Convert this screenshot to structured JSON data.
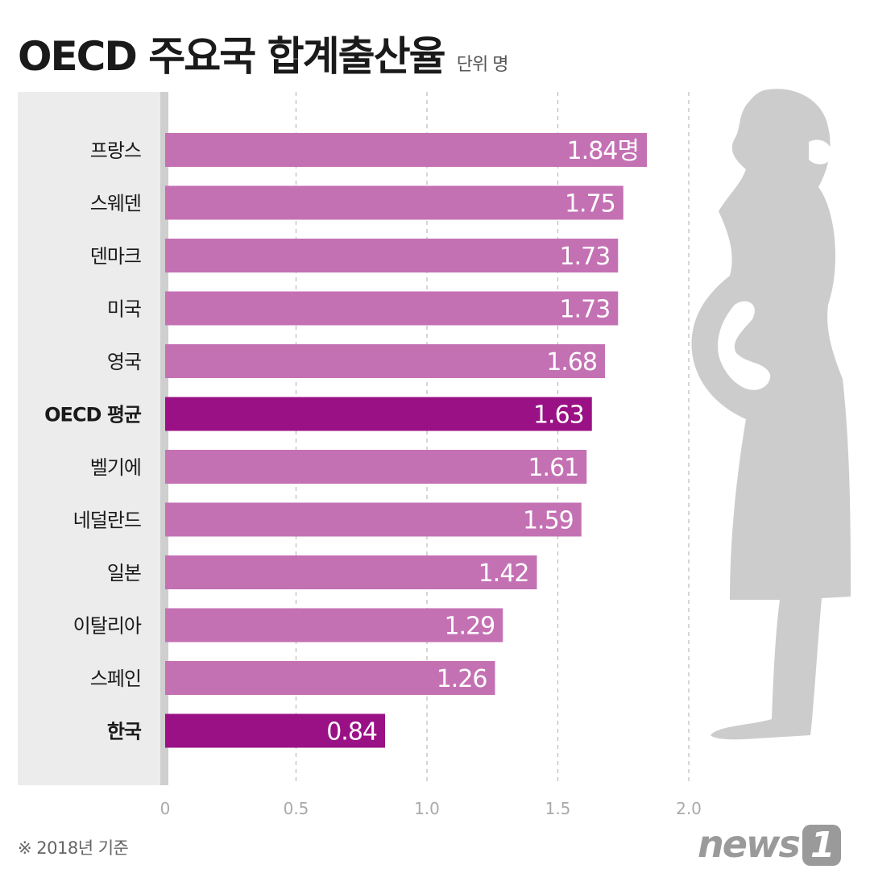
{
  "title": "OECD 주요국 합계출산율",
  "unit": "단위 명",
  "footnote": "※ 2018년 기준",
  "logo": {
    "text": "news",
    "mark": "1"
  },
  "colors": {
    "bar": "#c471b4",
    "highlight": "#9a1185",
    "panel": "#ececec",
    "divider": "#cfcfcf",
    "grid": "#bbbbbb",
    "silhouette": "#cccccc"
  },
  "chart_data": {
    "type": "bar",
    "orientation": "horizontal",
    "categories": [
      "프랑스",
      "스웨덴",
      "덴마크",
      "미국",
      "영국",
      "OECD 평균",
      "벨기에",
      "네덜란드",
      "일본",
      "이탈리아",
      "스페인",
      "한국"
    ],
    "values": [
      1.84,
      1.75,
      1.73,
      1.73,
      1.68,
      1.63,
      1.61,
      1.59,
      1.42,
      1.29,
      1.26,
      0.84
    ],
    "value_labels": [
      "1.84명",
      "1.75",
      "1.73",
      "1.73",
      "1.68",
      "1.63",
      "1.61",
      "1.59",
      "1.42",
      "1.29",
      "1.26",
      "0.84"
    ],
    "highlighted": [
      "OECD 평균",
      "한국"
    ],
    "xlim": [
      0,
      2.0
    ],
    "ticks": [
      "0",
      "0.5",
      "1.0",
      "1.5",
      "2.0"
    ],
    "tick_values": [
      0,
      0.5,
      1.0,
      1.5,
      2.0
    ],
    "grid": "vertical dashed"
  }
}
